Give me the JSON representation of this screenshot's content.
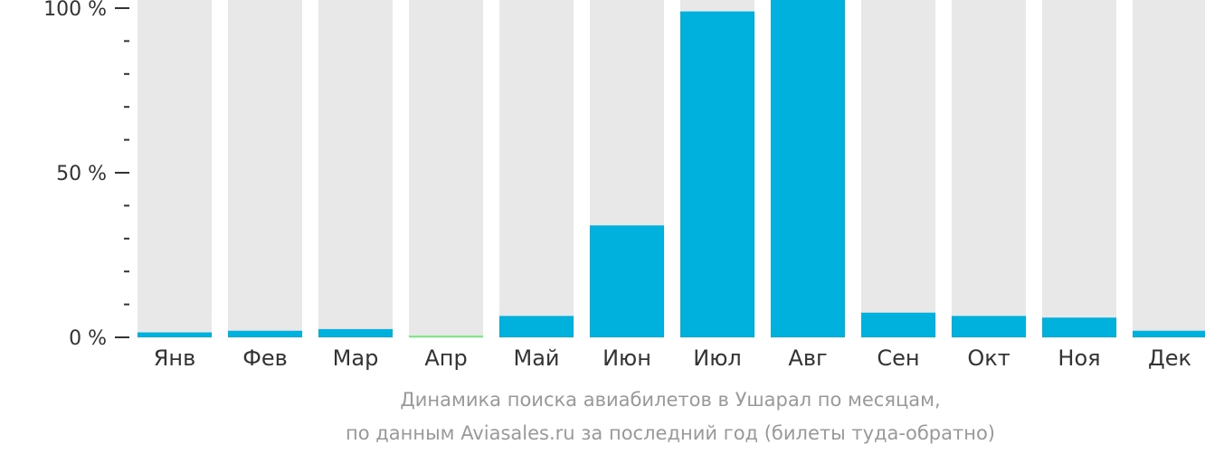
{
  "chart_data": {
    "type": "bar",
    "title": "Динамика поиска авиабилетов в Ушарал по месяцам,",
    "subtitle": "по данным Aviasales.ru за последний год (билеты туда-обратно)",
    "xlabel": "",
    "ylabel": "",
    "categories": [
      "Янв",
      "Фев",
      "Мар",
      "Апр",
      "Май",
      "Июн",
      "Июл",
      "Авг",
      "Сен",
      "Окт",
      "Ноя",
      "Дек"
    ],
    "values": [
      1.5,
      2,
      2.5,
      0.5,
      6.5,
      34,
      99,
      104,
      7.5,
      6.5,
      6,
      2
    ],
    "ylim": [
      0,
      100
    ],
    "yticks": [
      "0 %",
      "50 %",
      "100 %"
    ],
    "ytick_values": [
      0,
      50,
      100
    ],
    "grid": false,
    "legend": "none",
    "colors": {
      "bar": "#00b1dd",
      "bar_highlight": "#75e87a",
      "background_bar": "#e8e8e8",
      "axis": "#333333",
      "caption": "#999999"
    },
    "highlight_index": 3
  }
}
